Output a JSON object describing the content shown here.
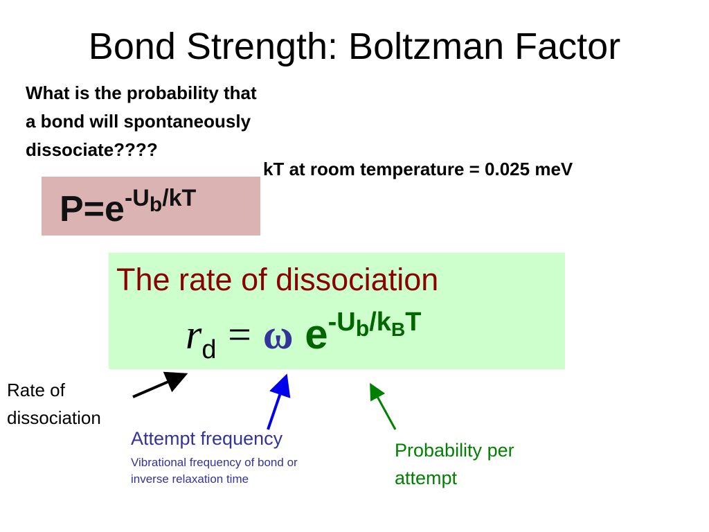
{
  "title": "Bond Strength: Boltzman Factor",
  "question": [
    "What is the probability that",
    "a bond will spontaneously",
    "dissociate????"
  ],
  "kt_note": "kT at room temperature = 0.025 meV",
  "boltzmann_formula": {
    "base": "P=e",
    "exp_start": "-U",
    "exp_sub": "b",
    "exp_end": "/kT"
  },
  "rate_box": {
    "heading": "The rate of dissociation",
    "symbol": "r",
    "symbol_sub": "d",
    "equals": "=",
    "omega": "ω",
    "base": "e",
    "exp_start": "-U",
    "exp_sub": "b",
    "exp_mid": "/k",
    "exp_sub2": "B",
    "exp_end": "T"
  },
  "labels": {
    "rate": [
      "Rate of",
      "dissociation"
    ],
    "attempt": "Attempt frequency",
    "attempt_note": [
      "Vibrational frequency of bond or",
      "inverse relaxation time"
    ],
    "probability": [
      "Probability per",
      "attempt"
    ]
  }
}
